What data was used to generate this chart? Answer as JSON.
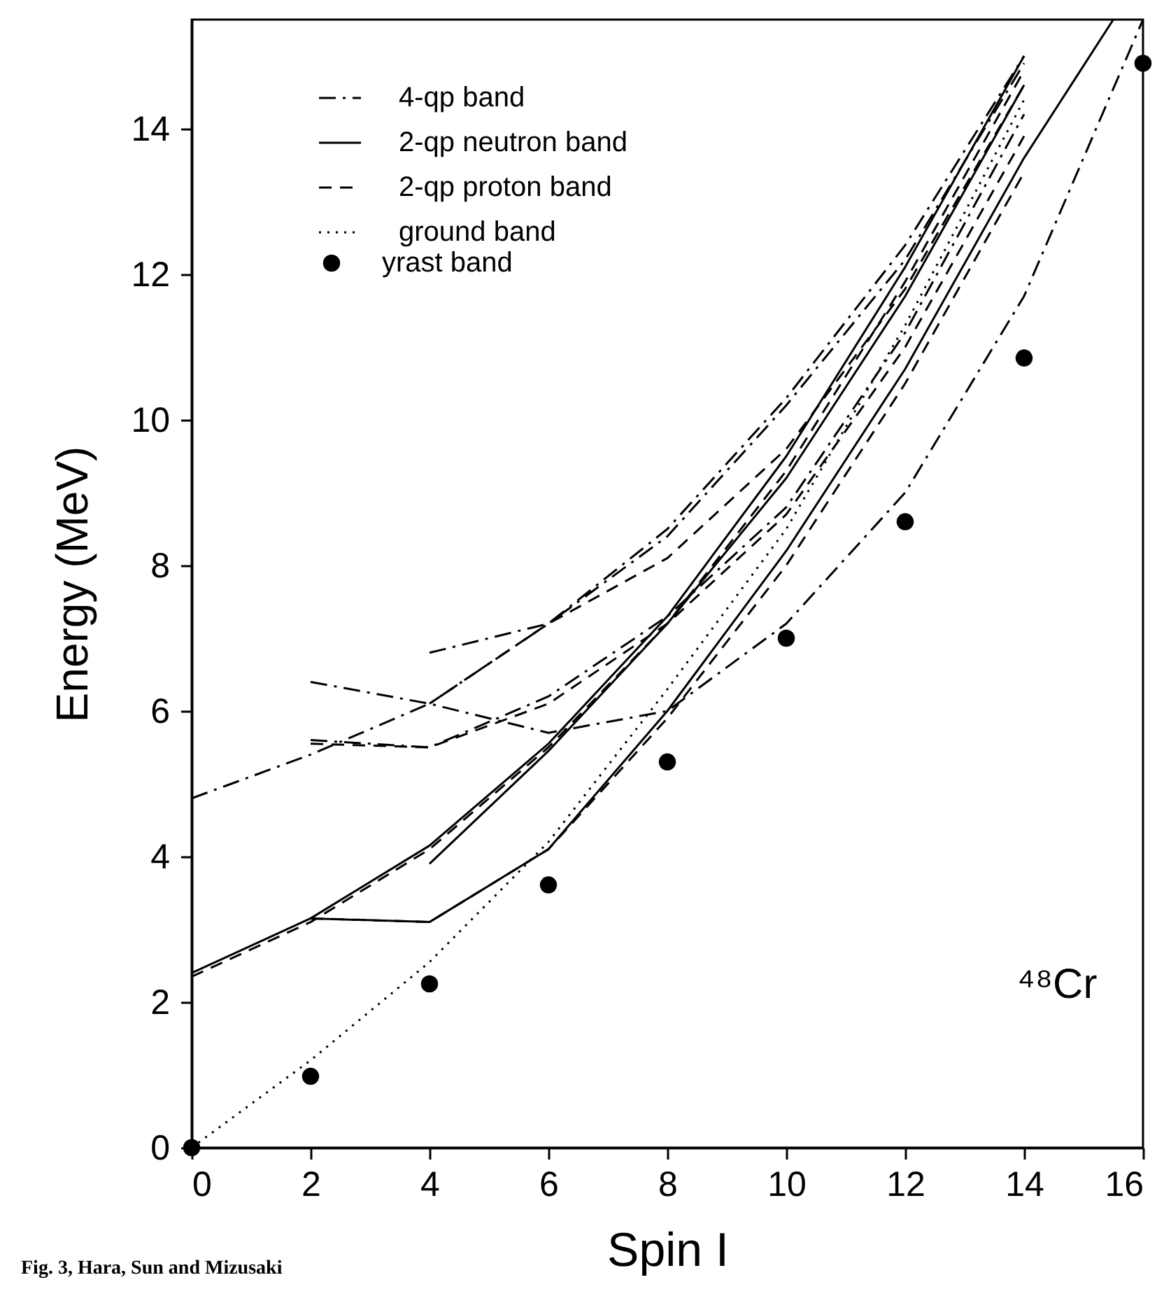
{
  "chart_data": {
    "type": "line",
    "xlabel": "Spin I",
    "ylabel": "Energy (MeV)",
    "xlim": [
      0,
      16
    ],
    "ylim": [
      0,
      15.5
    ],
    "xticks": [
      0,
      2,
      4,
      6,
      8,
      10,
      12,
      14,
      16
    ],
    "yticks": [
      0,
      2,
      4,
      6,
      8,
      10,
      12,
      14
    ],
    "grid": false,
    "legend": "top left",
    "annotations": [
      "⁴⁸Cr",
      "Fig. 3, Hara, Sun and Mizusaki"
    ],
    "series": [
      {
        "name": "4-qp band",
        "color": "#000000",
        "line_style": "dashdot",
        "x": [
          0,
          2,
          4,
          6,
          8,
          10,
          12,
          14
        ],
        "values": [
          4.8,
          5.4,
          6.1,
          7.2,
          8.5,
          10.3,
          12.4,
          15.0
        ]
      },
      {
        "color": "#000000",
        "line_style": "dashdot",
        "x": [
          2,
          4,
          6,
          8,
          10,
          12,
          14,
          16
        ],
        "values": [
          6.4,
          6.1,
          5.7,
          6.0,
          7.2,
          9.0,
          11.7,
          15.5
        ]
      },
      {
        "color": "#000000",
        "line_style": "dashdot",
        "x": [
          4,
          6,
          8,
          10,
          12,
          14
        ],
        "values": [
          6.8,
          7.2,
          8.4,
          10.2,
          12.2,
          14.9
        ]
      },
      {
        "color": "#000000",
        "line_style": "dashdot",
        "x": [
          2,
          4,
          6,
          8,
          10,
          12,
          14
        ],
        "values": [
          5.6,
          5.5,
          6.2,
          7.3,
          8.8,
          11.2,
          14.2
        ]
      },
      {
        "name": "2-qp neutron band",
        "color": "#000000",
        "line_style": "solid",
        "x": [
          0,
          2,
          4,
          6,
          8,
          10,
          12,
          14
        ],
        "values": [
          2.4,
          3.15,
          4.15,
          5.55,
          7.3,
          9.5,
          12.1,
          15.0
        ]
      },
      {
        "color": "#000000",
        "line_style": "solid",
        "x": [
          2,
          4,
          6,
          8,
          10,
          12,
          14,
          15.5
        ],
        "values": [
          3.15,
          3.1,
          4.1,
          6.0,
          8.2,
          10.7,
          13.6,
          15.5
        ]
      },
      {
        "color": "#000000",
        "line_style": "solid",
        "x": [
          4,
          6,
          8,
          10,
          12,
          14
        ],
        "values": [
          3.9,
          5.45,
          7.2,
          9.2,
          11.7,
          14.6
        ]
      },
      {
        "name": "2-qp proton band",
        "color": "#000000",
        "line_style": "dashed",
        "x": [
          0,
          2,
          4,
          6,
          8,
          10,
          12,
          14
        ],
        "values": [
          2.35,
          3.1,
          4.1,
          5.5,
          7.2,
          9.3,
          11.9,
          14.8
        ]
      },
      {
        "color": "#000000",
        "line_style": "dashed",
        "x": [
          2,
          4,
          6,
          8,
          10,
          12,
          14
        ],
        "values": [
          3.15,
          3.1,
          4.1,
          5.9,
          8.0,
          10.5,
          13.4
        ]
      },
      {
        "color": "#000000",
        "line_style": "dashed",
        "x": [
          2,
          4,
          6,
          8,
          10,
          12,
          14
        ],
        "values": [
          5.55,
          5.5,
          6.1,
          7.2,
          8.7,
          11.0,
          13.9
        ]
      },
      {
        "color": "#000000",
        "line_style": "dashed",
        "x": [
          4,
          6,
          8,
          10,
          12,
          14
        ],
        "values": [
          6.1,
          7.2,
          8.1,
          9.6,
          11.8,
          14.6
        ]
      },
      {
        "name": "ground band",
        "color": "#000000",
        "line_style": "dotted",
        "x": [
          0,
          2,
          4,
          6,
          8,
          10,
          12,
          14
        ],
        "values": [
          0,
          1.2,
          2.55,
          4.2,
          6.3,
          8.5,
          11.3,
          14.4
        ]
      },
      {
        "name": "yrast band",
        "type": "scatter",
        "marker": "circle",
        "color": "#000000",
        "x": [
          0,
          2,
          4,
          6,
          8,
          10,
          12,
          14,
          16
        ],
        "values": [
          0,
          0.98,
          2.25,
          3.61,
          5.3,
          7.0,
          8.6,
          10.85,
          14.9
        ]
      }
    ]
  }
}
